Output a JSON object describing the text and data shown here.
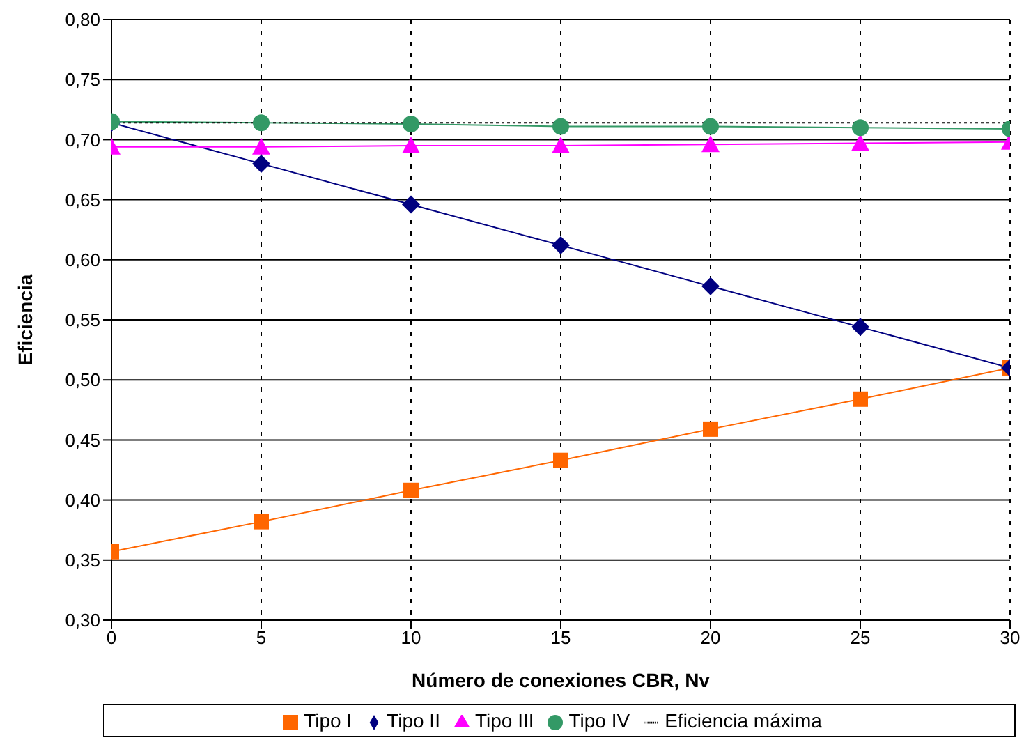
{
  "chart_data": {
    "type": "line",
    "xlabel": "Número de conexiones CBR, Nv",
    "ylabel": "Eficiencia",
    "x": [
      0,
      5,
      10,
      15,
      20,
      25,
      30
    ],
    "series": [
      {
        "name": "Tipo I",
        "color": "#ff6600",
        "marker": "square",
        "values": [
          0.357,
          0.382,
          0.408,
          0.433,
          0.459,
          0.484,
          0.51
        ]
      },
      {
        "name": "Tipo II",
        "color": "#000080",
        "marker": "diamond",
        "values": [
          0.714,
          0.68,
          0.646,
          0.612,
          0.578,
          0.544,
          0.51
        ]
      },
      {
        "name": "Tipo III",
        "color": "#ff00ff",
        "marker": "triangle",
        "values": [
          0.694,
          0.694,
          0.695,
          0.695,
          0.696,
          0.697,
          0.698
        ]
      },
      {
        "name": "Tipo IV",
        "color": "#339966",
        "marker": "circle",
        "values": [
          0.715,
          0.714,
          0.713,
          0.711,
          0.711,
          0.71,
          0.709
        ]
      },
      {
        "name": "Eficiencia máxima",
        "color": "#000000",
        "marker": "none",
        "line_style": "dotted",
        "values": [
          0.714,
          0.714,
          0.714,
          0.714,
          0.714,
          0.714,
          0.714
        ]
      }
    ],
    "xlim": [
      0,
      30
    ],
    "xticks": [
      0,
      5,
      10,
      15,
      20,
      25,
      30
    ],
    "ylim": [
      0.3,
      0.8
    ],
    "yticks": [
      {
        "value": 0.3,
        "label": "0,30"
      },
      {
        "value": 0.35,
        "label": "0,35"
      },
      {
        "value": 0.4,
        "label": "0,40"
      },
      {
        "value": 0.45,
        "label": "0,45"
      },
      {
        "value": 0.5,
        "label": "0,50"
      },
      {
        "value": 0.55,
        "label": "0,55"
      },
      {
        "value": 0.6,
        "label": "0,60"
      },
      {
        "value": 0.65,
        "label": "0,65"
      },
      {
        "value": 0.7,
        "label": "0,70"
      },
      {
        "value": 0.75,
        "label": "0,75"
      },
      {
        "value": 0.8,
        "label": "0,80"
      }
    ],
    "grid": true,
    "legend": "bottom"
  }
}
